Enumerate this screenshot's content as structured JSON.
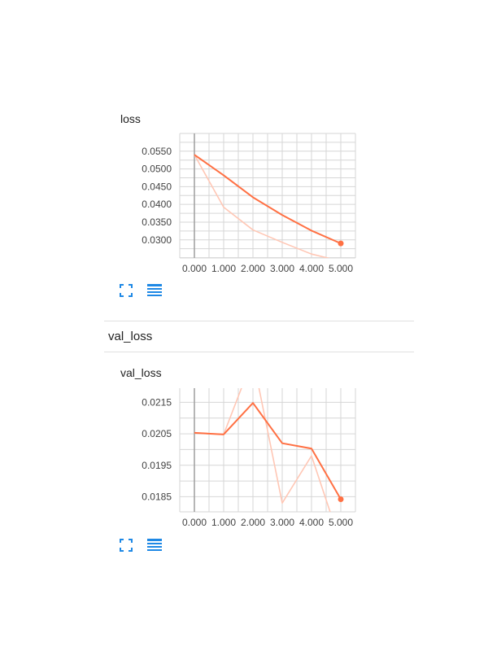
{
  "section": {
    "title": "val_loss"
  },
  "colors": {
    "accent": "#ff7043",
    "raw": "#ffc7b5",
    "grid": "#d6d6d6",
    "axis": "#9e9e9e",
    "icon": "#1e88e5"
  },
  "icons": {
    "expand": "fullscreen-icon",
    "menu": "data-table-icon"
  },
  "chart_data": [
    {
      "type": "line",
      "title": "loss",
      "x_ticks": [
        "0.000",
        "1.000",
        "2.000",
        "3.000",
        "4.000",
        "5.000"
      ],
      "y_ticks": [
        "0.0300",
        "0.0350",
        "0.0400",
        "0.0450",
        "0.0500",
        "0.0550"
      ],
      "xlim": [
        -0.5,
        5.5
      ],
      "ylim": [
        0.0249,
        0.06
      ],
      "grid": true,
      "series": [
        {
          "role": "smoothed",
          "x": [
            0,
            1,
            2,
            3,
            4,
            5
          ],
          "values": [
            0.054,
            0.0482,
            0.042,
            0.037,
            0.0326,
            0.029
          ]
        },
        {
          "role": "raw",
          "x": [
            0,
            1,
            2,
            3,
            4,
            5
          ],
          "values": [
            0.054,
            0.0392,
            0.0328,
            0.0293,
            0.026,
            0.024
          ]
        }
      ]
    },
    {
      "type": "line",
      "title": "val_loss",
      "x_ticks": [
        "0.000",
        "1.000",
        "2.000",
        "3.000",
        "4.000",
        "5.000"
      ],
      "y_ticks": [
        "0.0185",
        "0.0195",
        "0.0205",
        "0.0215"
      ],
      "xlim": [
        -0.5,
        5.5
      ],
      "ylim": [
        0.01802,
        0.02195
      ],
      "grid": true,
      "series": [
        {
          "role": "smoothed",
          "x": [
            0,
            1,
            2,
            3,
            4,
            5
          ],
          "values": [
            0.02053,
            0.02048,
            0.02148,
            0.0202,
            0.02003,
            0.01842
          ]
        },
        {
          "role": "raw",
          "x": [
            0,
            1,
            2,
            3,
            4,
            5
          ],
          "values": [
            0.02053,
            0.02048,
            0.0229,
            0.0183,
            0.0198,
            0.017
          ]
        }
      ]
    }
  ]
}
